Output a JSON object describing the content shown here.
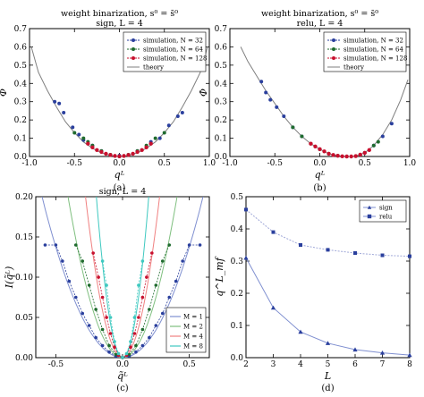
{
  "colors": {
    "theory_a": "#7f7f7f",
    "blue": "#2a3f9d",
    "green": "#1f6b2e",
    "red": "#c8102e",
    "teal": "#3fc9c0",
    "pink": "#f08080",
    "lightgreen": "#7fbf7f",
    "lightblue": "#7f8fd0"
  },
  "chart_data": [
    {
      "type": "scatter",
      "panel": "a",
      "caption": "(a)",
      "title": [
        "weight binarization, s⁰ = s̄⁰",
        "sign, L = 4"
      ],
      "xlabel": "qᴸ",
      "ylabel": "Φ",
      "xlim": [
        -1.0,
        1.0
      ],
      "ylim": [
        0.0,
        0.7
      ],
      "xticks": [
        "-1.0",
        "-0.5",
        "0.0",
        "0.5",
        "1.0"
      ],
      "yticks": [
        "0.0",
        "0.1",
        "0.2",
        "0.3",
        "0.4",
        "0.5",
        "0.6",
        "0.7"
      ],
      "legend": {
        "position": "top-right",
        "entries": [
          "simulation, N = 32",
          "simulation, N = 64",
          "simulation, N = 128",
          "theory"
        ]
      },
      "theory": {
        "name": "theory",
        "x": [
          -0.98,
          -0.9,
          -0.8,
          -0.7,
          -0.6,
          -0.5,
          -0.4,
          -0.3,
          -0.2,
          -0.1,
          0.0,
          0.1,
          0.2,
          0.3,
          0.4,
          0.5,
          0.6,
          0.7,
          0.8,
          0.9,
          0.98
        ],
        "y": [
          0.6,
          0.46,
          0.36,
          0.27,
          0.19,
          0.13,
          0.08,
          0.045,
          0.02,
          0.005,
          0.0,
          0.005,
          0.02,
          0.045,
          0.08,
          0.13,
          0.19,
          0.27,
          0.36,
          0.46,
          0.6
        ]
      },
      "series": [
        {
          "name": "simulation, N = 32",
          "x": [
            -0.72,
            -0.67,
            -0.62,
            -0.52,
            -0.45,
            -0.4,
            -0.3,
            -0.2,
            0.0,
            0.2,
            0.35,
            0.45,
            0.55,
            0.65,
            0.7
          ],
          "y": [
            0.3,
            0.29,
            0.24,
            0.16,
            0.12,
            0.09,
            0.06,
            0.03,
            0.005,
            0.03,
            0.08,
            0.1,
            0.17,
            0.22,
            0.24
          ]
        },
        {
          "name": "simulation, N = 64",
          "x": [
            -0.5,
            -0.4,
            -0.35,
            -0.3,
            -0.2,
            -0.1,
            0.0,
            0.1,
            0.2,
            0.3,
            0.4,
            0.5
          ],
          "y": [
            0.13,
            0.1,
            0.08,
            0.06,
            0.03,
            0.01,
            0.0,
            0.01,
            0.03,
            0.06,
            0.1,
            0.13
          ]
        },
        {
          "name": "simulation, N = 128",
          "x": [
            -0.35,
            -0.3,
            -0.25,
            -0.2,
            -0.15,
            -0.1,
            -0.05,
            0.0,
            0.05,
            0.1,
            0.15,
            0.2,
            0.25,
            0.3,
            0.35
          ],
          "y": [
            0.07,
            0.05,
            0.035,
            0.025,
            0.015,
            0.008,
            0.003,
            0.001,
            0.003,
            0.008,
            0.015,
            0.025,
            0.035,
            0.05,
            0.07
          ]
        }
      ]
    },
    {
      "type": "scatter",
      "panel": "b",
      "caption": "(b)",
      "title": [
        "weight binarization, s⁰ = s̄⁰",
        "relu, L = 4"
      ],
      "xlabel": "qᴸ",
      "ylabel": "Φ",
      "xlim": [
        -1.0,
        1.0
      ],
      "ylim": [
        0.0,
        0.7
      ],
      "xticks": [
        "-1.0",
        "-0.5",
        "0.0",
        "0.5",
        "1.0"
      ],
      "yticks": [
        "0.0",
        "0.1",
        "0.2",
        "0.3",
        "0.4",
        "0.5",
        "0.6",
        "0.7"
      ],
      "legend": {
        "position": "top-right",
        "entries": [
          "simulation, N = 32",
          "simulation, N = 64",
          "simulation, N = 128",
          "theory"
        ]
      },
      "theory": {
        "name": "theory",
        "x": [
          -0.88,
          -0.8,
          -0.7,
          -0.6,
          -0.5,
          -0.4,
          -0.3,
          -0.2,
          -0.1,
          0.0,
          0.1,
          0.2,
          0.3,
          0.35,
          0.4,
          0.5,
          0.6,
          0.7,
          0.8,
          0.9,
          0.98
        ],
        "y": [
          0.6,
          0.52,
          0.44,
          0.36,
          0.29,
          0.22,
          0.16,
          0.11,
          0.07,
          0.04,
          0.015,
          0.004,
          0.0,
          0.0,
          0.002,
          0.02,
          0.06,
          0.12,
          0.2,
          0.31,
          0.42
        ]
      },
      "series": [
        {
          "name": "simulation, N = 32",
          "x": [
            -0.65,
            -0.6,
            -0.55,
            -0.48,
            -0.4,
            -0.3,
            -0.2,
            0.0,
            0.3,
            0.5,
            0.6,
            0.7,
            0.8
          ],
          "y": [
            0.41,
            0.35,
            0.31,
            0.27,
            0.22,
            0.16,
            0.11,
            0.04,
            0.0,
            0.02,
            0.06,
            0.11,
            0.18
          ]
        },
        {
          "name": "simulation, N = 64",
          "x": [
            -0.3,
            -0.2,
            -0.1,
            0.0,
            0.1,
            0.2,
            0.3,
            0.4,
            0.5,
            0.6,
            0.65
          ],
          "y": [
            0.16,
            0.11,
            0.07,
            0.04,
            0.015,
            0.004,
            0.0,
            0.002,
            0.02,
            0.06,
            0.08
          ]
        },
        {
          "name": "simulation, N = 128",
          "x": [
            -0.1,
            -0.05,
            0.0,
            0.05,
            0.1,
            0.15,
            0.2,
            0.25,
            0.3,
            0.35,
            0.4,
            0.45,
            0.5,
            0.55
          ],
          "y": [
            0.07,
            0.055,
            0.04,
            0.028,
            0.015,
            0.008,
            0.004,
            0.001,
            0.0,
            0.0,
            0.002,
            0.01,
            0.02,
            0.035
          ]
        }
      ]
    },
    {
      "type": "line",
      "panel": "c",
      "caption": "(c)",
      "title": [
        "sign, L = 4"
      ],
      "xlabel": "q̃ᴸ",
      "ylabel": "I(q̃ᴸ)",
      "xlim": [
        -0.65,
        0.65
      ],
      "ylim": [
        0.0,
        0.2
      ],
      "xticks": [
        "-0.5",
        "0.0",
        "0.5"
      ],
      "yticks": [
        "0.00",
        "0.05",
        "0.10",
        "0.15",
        "0.20"
      ],
      "legend": {
        "position": "bottom-right",
        "entries": [
          "M = 1",
          "M = 2",
          "M = 4",
          "M = 8"
        ]
      },
      "series": [
        {
          "name": "M = 1",
          "curve_k": 0.55,
          "x": [
            -0.58,
            -0.5,
            -0.45,
            -0.4,
            -0.35,
            -0.3,
            -0.25,
            -0.2,
            -0.15,
            -0.1,
            -0.05,
            0.0,
            0.05,
            0.1,
            0.15,
            0.2,
            0.25,
            0.3,
            0.35,
            0.4,
            0.45,
            0.5,
            0.58
          ],
          "y": [
            0.14,
            0.14,
            0.12,
            0.095,
            0.075,
            0.055,
            0.04,
            0.025,
            0.015,
            0.007,
            0.002,
            0.0,
            0.002,
            0.007,
            0.015,
            0.025,
            0.04,
            0.055,
            0.075,
            0.095,
            0.12,
            0.14,
            0.14
          ]
        },
        {
          "name": "M = 2",
          "curve_k": 1.2,
          "x": [
            -0.35,
            -0.3,
            -0.25,
            -0.2,
            -0.15,
            -0.1,
            -0.05,
            0.0,
            0.05,
            0.1,
            0.15,
            0.2,
            0.25,
            0.3,
            0.35
          ],
          "y": [
            0.14,
            0.12,
            0.09,
            0.06,
            0.035,
            0.015,
            0.004,
            0.0,
            0.004,
            0.015,
            0.035,
            0.06,
            0.09,
            0.12,
            0.14
          ]
        },
        {
          "name": "M = 4",
          "curve_k": 2.6,
          "x": [
            -0.22,
            -0.18,
            -0.15,
            -0.12,
            -0.09,
            -0.06,
            -0.03,
            0.0,
            0.03,
            0.06,
            0.09,
            0.12,
            0.15,
            0.18,
            0.22
          ],
          "y": [
            0.13,
            0.1,
            0.075,
            0.05,
            0.03,
            0.013,
            0.003,
            0.0,
            0.003,
            0.013,
            0.03,
            0.05,
            0.075,
            0.1,
            0.13
          ]
        },
        {
          "name": "M = 8",
          "curve_k": 5.2,
          "x": [
            -0.15,
            -0.12,
            -0.09,
            -0.06,
            -0.03,
            0.0,
            0.03,
            0.06,
            0.09,
            0.12,
            0.15
          ],
          "y": [
            0.12,
            0.09,
            0.05,
            0.02,
            0.005,
            0.0,
            0.005,
            0.02,
            0.05,
            0.09,
            0.12
          ]
        }
      ]
    },
    {
      "type": "line",
      "panel": "d",
      "caption": "(d)",
      "xlabel": "L",
      "ylabel": "q^L_mf",
      "xlim": [
        2,
        8
      ],
      "ylim": [
        0.0,
        0.5
      ],
      "xticks": [
        "2",
        "3",
        "4",
        "5",
        "6",
        "7",
        "8"
      ],
      "yticks": [
        "0.0",
        "0.1",
        "0.2",
        "0.3",
        "0.4",
        "0.5"
      ],
      "legend": {
        "position": "top-right",
        "entries": [
          "sign",
          "relu"
        ]
      },
      "series": [
        {
          "name": "sign",
          "x": [
            2,
            3,
            4,
            5,
            6,
            7,
            8
          ],
          "y": [
            0.31,
            0.155,
            0.08,
            0.045,
            0.025,
            0.015,
            0.008
          ]
        },
        {
          "name": "relu",
          "x": [
            2,
            3,
            4,
            5,
            6,
            7,
            8
          ],
          "y": [
            0.46,
            0.39,
            0.35,
            0.335,
            0.325,
            0.318,
            0.315
          ]
        }
      ]
    }
  ]
}
